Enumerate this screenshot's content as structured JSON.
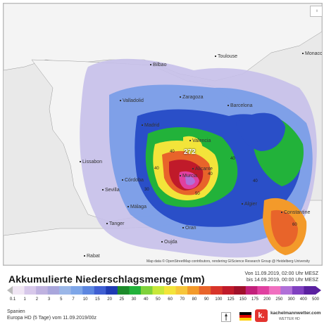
{
  "map": {
    "attribution": "Map data © OpenStreetMap contributors, rendering GIScience Research Group @ Heidelberg University",
    "max_value": "272",
    "cities": [
      {
        "name": "Toulouse"
      },
      {
        "name": "Monaco"
      },
      {
        "name": "Bilbao"
      },
      {
        "name": "Zaragoza"
      },
      {
        "name": "Barcelona"
      },
      {
        "name": "Valladolid"
      },
      {
        "name": "Madrid"
      },
      {
        "name": "Valencia"
      },
      {
        "name": "Lissabon"
      },
      {
        "name": "Alicante"
      },
      {
        "name": "Murcia"
      },
      {
        "name": "Córdoba"
      },
      {
        "name": "Sevilla"
      },
      {
        "name": "Málaga"
      },
      {
        "name": "Tanger"
      },
      {
        "name": "Algier"
      },
      {
        "name": "Oran"
      },
      {
        "name": "Rabat"
      },
      {
        "name": "Oujda"
      },
      {
        "name": "Constantine"
      }
    ],
    "contour_labels": [
      "40",
      "40",
      "40",
      "40",
      "30",
      "50",
      "60",
      "40"
    ]
  },
  "legend": {
    "title": "Akkumulierte Niederschlagsmenge (mm)",
    "period_from": "Von 11.09.2019, 02:00 Uhr MESZ",
    "period_to": "bis 14.09.2019, 00:00 Uhr MESZ",
    "scale": [
      "0.1",
      "1",
      "2",
      "3",
      "5",
      "7",
      "10",
      "15",
      "20",
      "25",
      "30",
      "40",
      "50",
      "60",
      "70",
      "80",
      "90",
      "100",
      "125",
      "150",
      "175",
      "200",
      "250",
      "300",
      "400",
      "500"
    ],
    "colors": [
      "#f0e6f4",
      "#d7c8ea",
      "#bfb2e0",
      "#a9a6dc",
      "#9bb7e8",
      "#7ea6e8",
      "#5c86e0",
      "#3f5fd2",
      "#1f3bb3",
      "#1c8a2a",
      "#22b23a",
      "#7fd23a",
      "#c8e83a",
      "#f3e43a",
      "#f7c63a",
      "#f39a2a",
      "#e8642a",
      "#d8342a",
      "#c01a2a",
      "#a0102a",
      "#c2207a",
      "#e040a0",
      "#f070c0",
      "#b070d8",
      "#8040c0",
      "#5a20a0"
    ]
  },
  "footer": {
    "region": "Spanien",
    "model_run": "Europa HD (5 Tage) vom 11.09.2019/00z",
    "logo_text": "kachelmannwetter.com",
    "logo_sub": "WETTER HD",
    "logo_letter": "k."
  }
}
